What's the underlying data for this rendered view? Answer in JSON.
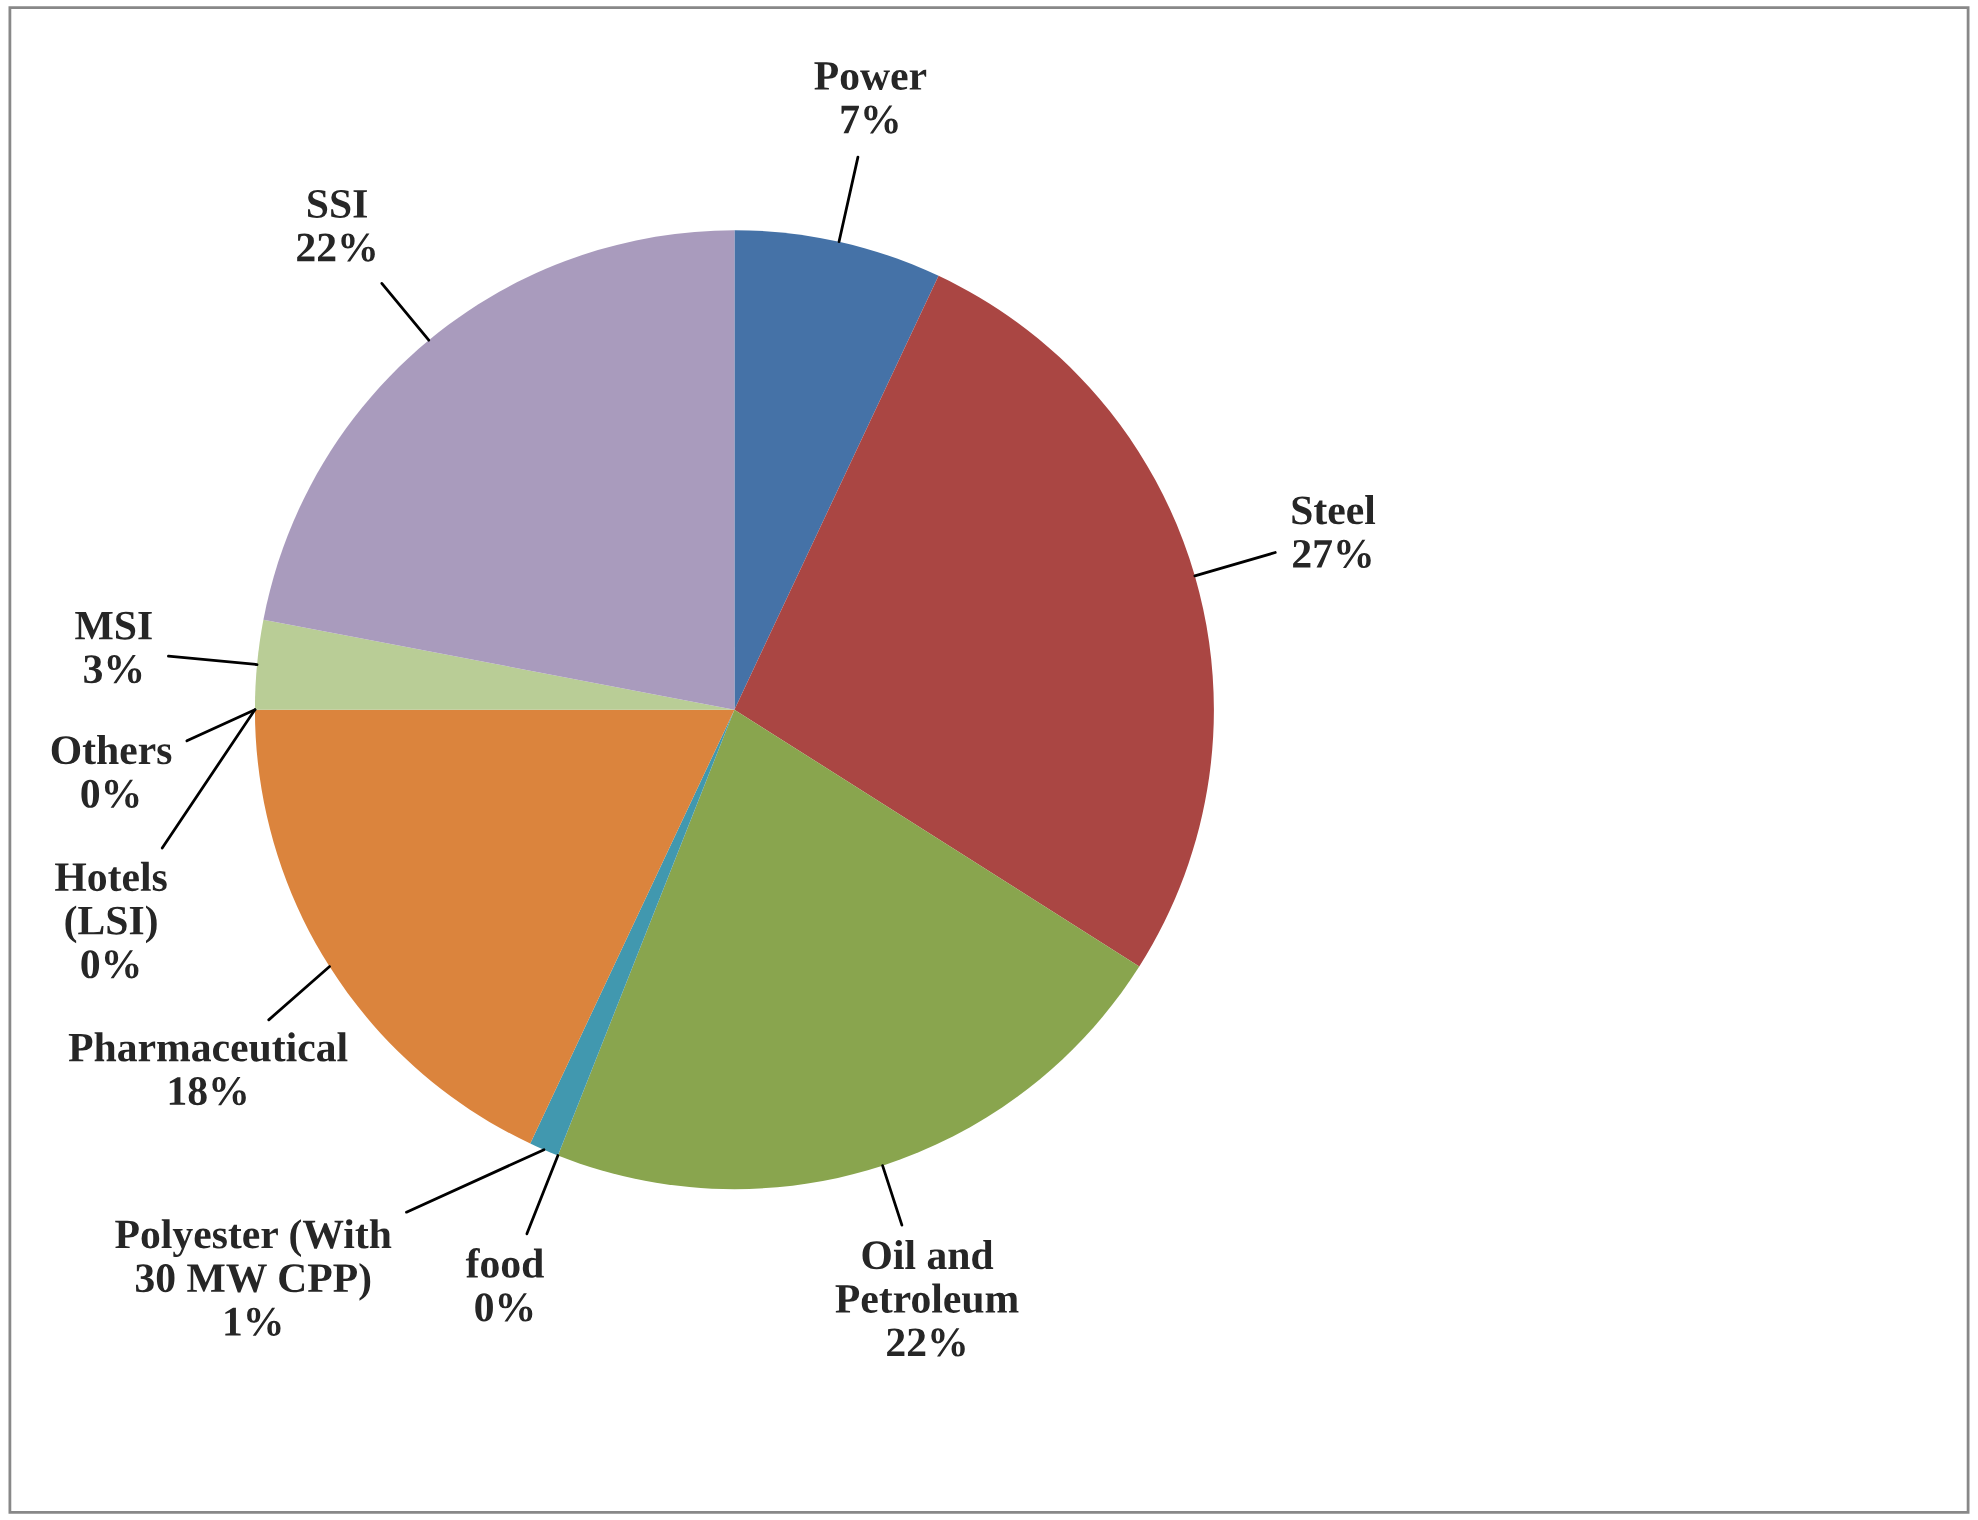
{
  "chart_data": {
    "type": "pie",
    "categories": [
      "Power",
      "Steel",
      "Oil and\nPetroleum",
      "food",
      "Polyester (With\n30 MW CPP)",
      "Pharmaceutical",
      "Others",
      "Hotels\n(LSI)",
      "MSI",
      "SSI"
    ],
    "values": [
      7,
      27,
      22,
      0,
      1,
      18,
      0,
      0,
      3,
      22
    ],
    "value_labels": [
      "7%",
      "27%",
      "22%",
      "0%",
      "1%",
      "18%",
      "0%",
      "0%",
      "3%",
      "22%"
    ],
    "colors": [
      "#4572a7",
      "#aa4643",
      "#89a54e",
      "#71588f",
      "#4198af",
      "#db843d",
      "#93a9cf",
      "#d19392",
      "#b9cd96",
      "#a99bbd"
    ]
  }
}
